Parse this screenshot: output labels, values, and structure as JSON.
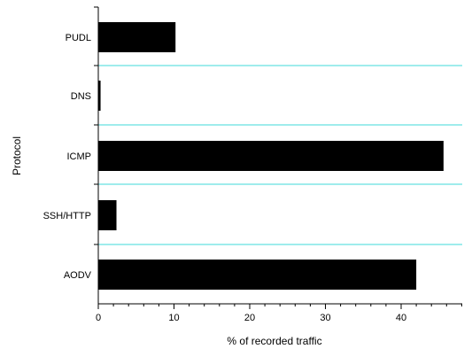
{
  "chart_data": {
    "type": "bar",
    "orientation": "horizontal",
    "categories": [
      "PUDL",
      "DNS",
      "ICMP",
      "SSH/HTTP",
      "AODV"
    ],
    "values": [
      10.2,
      0.3,
      45.6,
      2.4,
      42.0
    ],
    "xlabel": "% of recorded traffic",
    "ylabel": "Protocol",
    "xlim": [
      0,
      49
    ],
    "xticks": [
      0,
      10,
      20,
      30,
      40
    ],
    "xtick_labels": [
      "0",
      "10",
      "20",
      "30",
      "40"
    ],
    "grid": "separator lines between categories",
    "colors": {
      "bar": "#000000",
      "separator": "#66e0e0",
      "axis": "#000000"
    }
  }
}
